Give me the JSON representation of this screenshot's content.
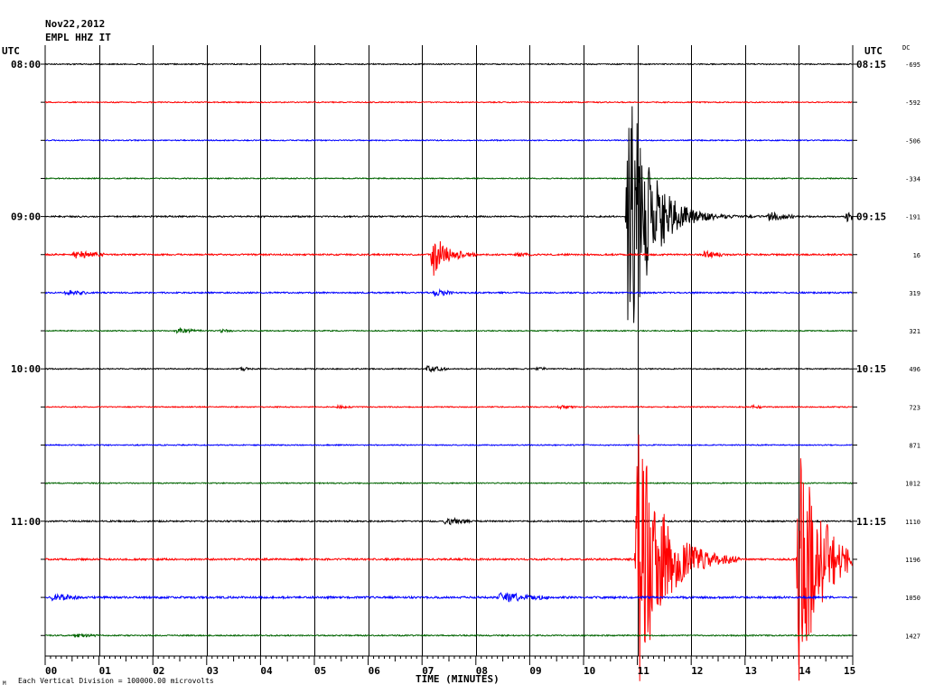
{
  "header": {
    "date": "Nov22,2012",
    "station": "EMPL HHZ IT",
    "utc_left": "UTC",
    "utc_right": "UTC",
    "dc_label": "DC"
  },
  "footer": {
    "scale_note": "Each Vertical Division = 100000.00 microvolts",
    "mark": "M"
  },
  "colors": {
    "black": "#000000",
    "red": "#ff0000",
    "blue": "#0000ff",
    "green": "#006400",
    "grid": "#000000"
  },
  "chart_data": {
    "type": "line",
    "title": "",
    "xlabel": "TIME (MINUTES)",
    "ylabel": "",
    "xlim": [
      0,
      15
    ],
    "x_ticks": [
      "00",
      "01",
      "02",
      "03",
      "04",
      "05",
      "06",
      "07",
      "08",
      "09",
      "10",
      "11",
      "12",
      "13",
      "14",
      "15"
    ],
    "left_time_labels": [
      {
        "row": 0,
        "label": "08:00"
      },
      {
        "row": 4,
        "label": "09:00"
      },
      {
        "row": 8,
        "label": "10:00"
      },
      {
        "row": 12,
        "label": "11:00"
      }
    ],
    "right_time_labels": [
      {
        "row": 0,
        "label": "08:15"
      },
      {
        "row": 4,
        "label": "09:15"
      },
      {
        "row": 8,
        "label": "10:15"
      },
      {
        "row": 12,
        "label": "11:15"
      }
    ],
    "dc_offsets": [
      "-695",
      "-592",
      "-506",
      "-334",
      "-191",
      "16",
      "319",
      "321",
      "496",
      "723",
      "871",
      "1012",
      "1110",
      "1196",
      "1050",
      "1427"
    ],
    "traces": [
      {
        "row": 0,
        "color": "black",
        "noise": 0.6,
        "events": []
      },
      {
        "row": 1,
        "color": "red",
        "noise": 0.6,
        "events": []
      },
      {
        "row": 2,
        "color": "blue",
        "noise": 0.6,
        "events": []
      },
      {
        "row": 3,
        "color": "green",
        "noise": 0.6,
        "events": []
      },
      {
        "row": 4,
        "color": "black",
        "noise": 0.8,
        "events": [
          {
            "t": 10.78,
            "amp": 190,
            "decay": 0.38,
            "end": 15.0
          },
          {
            "t": 13.4,
            "amp": 5,
            "decay": 0.4,
            "end": 13.9
          },
          {
            "t": 14.85,
            "amp": 6,
            "decay": 0.2,
            "end": 15.0
          }
        ]
      },
      {
        "row": 5,
        "color": "red",
        "noise": 0.9,
        "events": [
          {
            "t": 0.5,
            "amp": 5,
            "decay": 0.35,
            "end": 1.1
          },
          {
            "t": 7.15,
            "amp": 30,
            "decay": 0.25,
            "end": 8.0
          },
          {
            "t": 8.7,
            "amp": 2,
            "decay": 0.2,
            "end": 9.1
          },
          {
            "t": 12.2,
            "amp": 4,
            "decay": 0.3,
            "end": 12.6
          }
        ]
      },
      {
        "row": 6,
        "color": "blue",
        "noise": 0.8,
        "events": [
          {
            "t": 0.35,
            "amp": 3,
            "decay": 0.3,
            "end": 0.8
          },
          {
            "t": 7.2,
            "amp": 6,
            "decay": 0.2,
            "end": 7.6
          }
        ]
      },
      {
        "row": 7,
        "color": "green",
        "noise": 0.6,
        "events": [
          {
            "t": 2.4,
            "amp": 3,
            "decay": 0.3,
            "end": 2.9
          },
          {
            "t": 3.2,
            "amp": 2,
            "decay": 0.2,
            "end": 3.5
          }
        ]
      },
      {
        "row": 8,
        "color": "black",
        "noise": 0.6,
        "events": [
          {
            "t": 3.6,
            "amp": 2,
            "decay": 0.2,
            "end": 3.9
          },
          {
            "t": 7.05,
            "amp": 4,
            "decay": 0.3,
            "end": 7.5
          },
          {
            "t": 9.1,
            "amp": 2,
            "decay": 0.2,
            "end": 9.3
          }
        ]
      },
      {
        "row": 9,
        "color": "red",
        "noise": 0.6,
        "events": [
          {
            "t": 5.4,
            "amp": 2,
            "decay": 0.2,
            "end": 5.7
          },
          {
            "t": 9.5,
            "amp": 2,
            "decay": 0.2,
            "end": 9.9
          },
          {
            "t": 13.1,
            "amp": 2,
            "decay": 0.2,
            "end": 13.3
          }
        ]
      },
      {
        "row": 10,
        "color": "blue",
        "noise": 0.6,
        "events": []
      },
      {
        "row": 11,
        "color": "green",
        "noise": 0.6,
        "events": []
      },
      {
        "row": 12,
        "color": "black",
        "noise": 0.8,
        "events": [
          {
            "t": 7.4,
            "amp": 6,
            "decay": 0.25,
            "end": 7.9
          }
        ]
      },
      {
        "row": 13,
        "color": "red",
        "noise": 1.0,
        "events": [
          {
            "t": 10.95,
            "amp": 170,
            "decay": 0.45,
            "end": 12.9
          },
          {
            "t": 13.95,
            "amp": 160,
            "decay": 0.4,
            "end": 15.0
          }
        ]
      },
      {
        "row": 14,
        "color": "blue",
        "noise": 1.1,
        "events": [
          {
            "t": 0.1,
            "amp": 4,
            "decay": 0.4,
            "end": 0.6
          },
          {
            "t": 8.4,
            "amp": 6,
            "decay": 0.5,
            "end": 9.4
          }
        ]
      },
      {
        "row": 15,
        "color": "green",
        "noise": 0.7,
        "events": [
          {
            "t": 0.5,
            "amp": 2,
            "decay": 0.3,
            "end": 1.0
          }
        ]
      }
    ]
  }
}
